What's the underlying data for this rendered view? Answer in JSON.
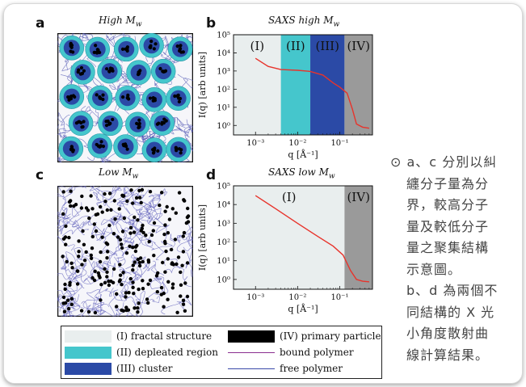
{
  "panels": {
    "a": {
      "letter": "a",
      "title": "High M",
      "title_sub": "w"
    },
    "b": {
      "letter": "b",
      "title": "SAXS high M",
      "title_sub": "w"
    },
    "c": {
      "letter": "c",
      "title": "Low M",
      "title_sub": "w"
    },
    "d": {
      "letter": "d",
      "title": "SAXS low M",
      "title_sub": "w"
    }
  },
  "legend": {
    "items": [
      {
        "label": "(I) fractal structure",
        "color": "#e9eeee"
      },
      {
        "label": "(IV) primary particle",
        "color": "#000000"
      },
      {
        "label": "(II) depleated region",
        "color": "#45c6cc"
      },
      {
        "label": "bound polymer",
        "color": "#8a2f8f"
      },
      {
        "label": "(III) cluster",
        "color": "#2b4aa6"
      },
      {
        "label": "free polymer",
        "color": "#3848a8"
      }
    ]
  },
  "caption": {
    "bullet": "⊙",
    "line1": "a、c 分別以糾",
    "line2": "纏分子量為分",
    "line3": "界，較高分子",
    "line4": "量及較低分子",
    "line5": "量之聚集結構",
    "line6": "示意圖。",
    "line7": "b、d 為兩個不",
    "line8": "同結構的 X 光",
    "line9": "小角度散射曲",
    "line10": "線計算結果。"
  },
  "chart_data": [
    {
      "type": "line",
      "panel": "b",
      "title": "SAXS high M_w",
      "xlabel": "q [Å⁻¹]",
      "ylabel": "I(q) [arb units]",
      "xscale": "log",
      "yscale": "log",
      "xlim": [
        0.0003,
        0.6
      ],
      "ylim": [
        0.3,
        100000
      ],
      "x_ticks": [
        "10⁻³",
        "10⁻²",
        "10⁻¹"
      ],
      "y_ticks": [
        "10⁰",
        "10¹",
        "10²",
        "10³",
        "10⁴",
        "10⁵"
      ],
      "regions": [
        {
          "label": "(I)",
          "from": 0.0003,
          "to": 0.004,
          "color": "#e9eeee"
        },
        {
          "label": "(II)",
          "from": 0.004,
          "to": 0.02,
          "color": "#45c6cc"
        },
        {
          "label": "(III)",
          "from": 0.02,
          "to": 0.13,
          "color": "#2b4aa6"
        },
        {
          "label": "(IV)",
          "from": 0.13,
          "to": 0.6,
          "color": "#9a9a9a"
        }
      ],
      "series": [
        {
          "color": "#e8332b",
          "points": [
            [
              0.001,
              5000
            ],
            [
              0.002,
              1800
            ],
            [
              0.004,
              1200
            ],
            [
              0.01,
              1100
            ],
            [
              0.02,
              950
            ],
            [
              0.04,
              600
            ],
            [
              0.07,
              220
            ],
            [
              0.1,
              130
            ],
            [
              0.15,
              60
            ],
            [
              0.2,
              8
            ],
            [
              0.25,
              1.2
            ],
            [
              0.35,
              0.8
            ],
            [
              0.5,
              0.7
            ]
          ]
        }
      ]
    },
    {
      "type": "line",
      "panel": "d",
      "title": "SAXS low M_w",
      "xlabel": "q [Å⁻¹]",
      "ylabel": "I(q) [arb units]",
      "xscale": "log",
      "yscale": "log",
      "xlim": [
        0.0003,
        0.6
      ],
      "ylim": [
        0.3,
        100000
      ],
      "x_ticks": [
        "10⁻³",
        "10⁻²",
        "10⁻¹"
      ],
      "y_ticks": [
        "10⁰",
        "10¹",
        "10²",
        "10³",
        "10⁴",
        "10⁵"
      ],
      "regions": [
        {
          "label": "(I)",
          "from": 0.0003,
          "to": 0.13,
          "color": "#e9eeee"
        },
        {
          "label": "(IV)",
          "from": 0.13,
          "to": 0.6,
          "color": "#9a9a9a"
        }
      ],
      "series": [
        {
          "color": "#e8332b",
          "points": [
            [
              0.001,
              30000
            ],
            [
              0.003,
              6000
            ],
            [
              0.01,
              1000
            ],
            [
              0.03,
              200
            ],
            [
              0.07,
              60
            ],
            [
              0.12,
              20
            ],
            [
              0.18,
              3
            ],
            [
              0.25,
              1.0
            ],
            [
              0.35,
              0.8
            ],
            [
              0.5,
              0.75
            ]
          ]
        }
      ]
    }
  ]
}
